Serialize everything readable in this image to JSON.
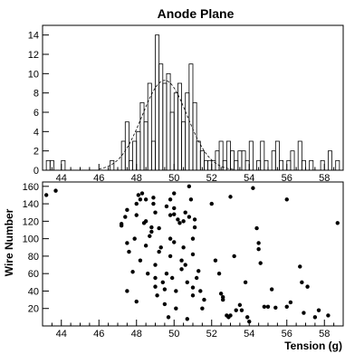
{
  "chart_data": [
    {
      "type": "bar",
      "title": "Anode Plane",
      "xlabel": "",
      "ylabel": "",
      "xlim": [
        43,
        59
      ],
      "ylim": [
        0,
        15
      ],
      "grid": false,
      "bin_width": 0.2,
      "x_ticks": [
        44,
        46,
        48,
        50,
        52,
        54,
        56,
        58
      ],
      "y_ticks": [
        0,
        2,
        4,
        6,
        8,
        10,
        12,
        14
      ],
      "bins": [
        [
          43.2,
          1
        ],
        [
          43.4,
          1
        ],
        [
          43.6,
          0
        ],
        [
          43.8,
          0
        ],
        [
          44.0,
          1
        ],
        [
          46.6,
          1
        ],
        [
          47.2,
          3
        ],
        [
          47.4,
          5
        ],
        [
          47.6,
          1
        ],
        [
          47.8,
          3
        ],
        [
          48.0,
          4
        ],
        [
          48.2,
          7
        ],
        [
          48.4,
          5
        ],
        [
          48.6,
          9
        ],
        [
          48.8,
          3
        ],
        [
          49.0,
          14
        ],
        [
          49.2,
          11
        ],
        [
          49.4,
          9
        ],
        [
          49.6,
          10
        ],
        [
          49.8,
          6
        ],
        [
          50.0,
          8
        ],
        [
          50.2,
          9
        ],
        [
          50.4,
          5
        ],
        [
          50.6,
          8
        ],
        [
          50.8,
          11
        ],
        [
          51.0,
          7
        ],
        [
          51.2,
          3
        ],
        [
          51.4,
          2
        ],
        [
          51.6,
          1
        ],
        [
          51.8,
          1
        ],
        [
          52.0,
          1
        ],
        [
          52.2,
          2
        ],
        [
          52.4,
          3
        ],
        [
          52.6,
          1
        ],
        [
          52.8,
          3
        ],
        [
          53.0,
          2
        ],
        [
          53.2,
          1
        ],
        [
          53.4,
          2
        ],
        [
          53.6,
          2
        ],
        [
          53.8,
          1
        ],
        [
          54.0,
          3
        ],
        [
          54.4,
          1
        ],
        [
          54.6,
          3
        ],
        [
          54.8,
          1
        ],
        [
          55.2,
          2
        ],
        [
          55.4,
          3
        ],
        [
          55.6,
          1
        ],
        [
          56.0,
          1
        ],
        [
          56.2,
          2
        ],
        [
          56.6,
          3
        ],
        [
          56.8,
          1
        ],
        [
          57.2,
          1
        ],
        [
          57.8,
          1
        ],
        [
          58.2,
          2
        ],
        [
          58.6,
          1
        ]
      ],
      "fit": {
        "kind": "gaussian",
        "mean": 49.5,
        "sigma": 1.2,
        "amplitude": 9.3
      }
    },
    {
      "type": "scatter",
      "title": "",
      "xlabel": "Tension (g)",
      "ylabel": "Wire Number",
      "xlim": [
        43,
        59
      ],
      "ylim": [
        0,
        165
      ],
      "grid": false,
      "x_ticks": [
        44,
        46,
        48,
        50,
        52,
        54,
        56,
        58
      ],
      "y_ticks": [
        20,
        40,
        60,
        80,
        100,
        120,
        140,
        160
      ],
      "points": [
        [
          43.2,
          150
        ],
        [
          43.7,
          155
        ],
        [
          47.2,
          115
        ],
        [
          47.2,
          117
        ],
        [
          47.4,
          125
        ],
        [
          47.5,
          133
        ],
        [
          47.5,
          95
        ],
        [
          47.5,
          40
        ],
        [
          47.6,
          85
        ],
        [
          47.8,
          62
        ],
        [
          47.9,
          100
        ],
        [
          48.0,
          127
        ],
        [
          48.0,
          140
        ],
        [
          48.0,
          28
        ],
        [
          48.1,
          150
        ],
        [
          48.2,
          145
        ],
        [
          48.2,
          75
        ],
        [
          48.3,
          152
        ],
        [
          48.4,
          118
        ],
        [
          48.5,
          145
        ],
        [
          48.5,
          120
        ],
        [
          48.5,
          92
        ],
        [
          48.6,
          60
        ],
        [
          48.7,
          103
        ],
        [
          48.8,
          108
        ],
        [
          48.8,
          113
        ],
        [
          48.9,
          147
        ],
        [
          48.9,
          140
        ],
        [
          49.0,
          130
        ],
        [
          49.0,
          70
        ],
        [
          49.0,
          55
        ],
        [
          49.0,
          45
        ],
        [
          49.1,
          35
        ],
        [
          49.2,
          112
        ],
        [
          49.2,
          85
        ],
        [
          49.3,
          90
        ],
        [
          49.4,
          50
        ],
        [
          49.5,
          42
        ],
        [
          49.5,
          25
        ],
        [
          49.6,
          137
        ],
        [
          49.6,
          60
        ],
        [
          49.7,
          10
        ],
        [
          49.8,
          145
        ],
        [
          49.8,
          127
        ],
        [
          49.8,
          100
        ],
        [
          49.8,
          80
        ],
        [
          49.9,
          55
        ],
        [
          50.0,
          152
        ],
        [
          50.0,
          135
        ],
        [
          50.0,
          128
        ],
        [
          50.0,
          96
        ],
        [
          50.1,
          40
        ],
        [
          50.1,
          20
        ],
        [
          50.2,
          122
        ],
        [
          50.3,
          118
        ],
        [
          50.4,
          75
        ],
        [
          50.4,
          65
        ],
        [
          50.5,
          120
        ],
        [
          50.5,
          90
        ],
        [
          50.6,
          130
        ],
        [
          50.6,
          70
        ],
        [
          50.7,
          50
        ],
        [
          50.7,
          8
        ],
        [
          50.8,
          125
        ],
        [
          50.8,
          160
        ],
        [
          50.9,
          145
        ],
        [
          51.0,
          100
        ],
        [
          51.0,
          82
        ],
        [
          51.0,
          44
        ],
        [
          51.0,
          35
        ],
        [
          51.1,
          122
        ],
        [
          51.1,
          113
        ],
        [
          51.2,
          55
        ],
        [
          51.3,
          63
        ],
        [
          51.4,
          40
        ],
        [
          51.5,
          20
        ],
        [
          51.6,
          30
        ],
        [
          52.0,
          140
        ],
        [
          52.2,
          75
        ],
        [
          52.4,
          60
        ],
        [
          52.5,
          37
        ],
        [
          52.6,
          33
        ],
        [
          52.6,
          30
        ],
        [
          52.8,
          12
        ],
        [
          52.9,
          10
        ],
        [
          53.0,
          148
        ],
        [
          53.0,
          12
        ],
        [
          53.2,
          80
        ],
        [
          53.3,
          18
        ],
        [
          53.5,
          24
        ],
        [
          53.6,
          18
        ],
        [
          53.8,
          50
        ],
        [
          53.9,
          10
        ],
        [
          54.0,
          5
        ],
        [
          54.2,
          158
        ],
        [
          54.4,
          112
        ],
        [
          54.5,
          95
        ],
        [
          54.5,
          88
        ],
        [
          54.6,
          72
        ],
        [
          54.8,
          22
        ],
        [
          55.0,
          22
        ],
        [
          55.2,
          42
        ],
        [
          55.4,
          21
        ],
        [
          56.0,
          145
        ],
        [
          56.0,
          22
        ],
        [
          56.2,
          27
        ],
        [
          56.7,
          68
        ],
        [
          56.8,
          50
        ],
        [
          56.9,
          15
        ],
        [
          57.1,
          45
        ],
        [
          57.5,
          10
        ],
        [
          57.7,
          18
        ],
        [
          58.2,
          12
        ],
        [
          58.7,
          118
        ]
      ]
    }
  ]
}
